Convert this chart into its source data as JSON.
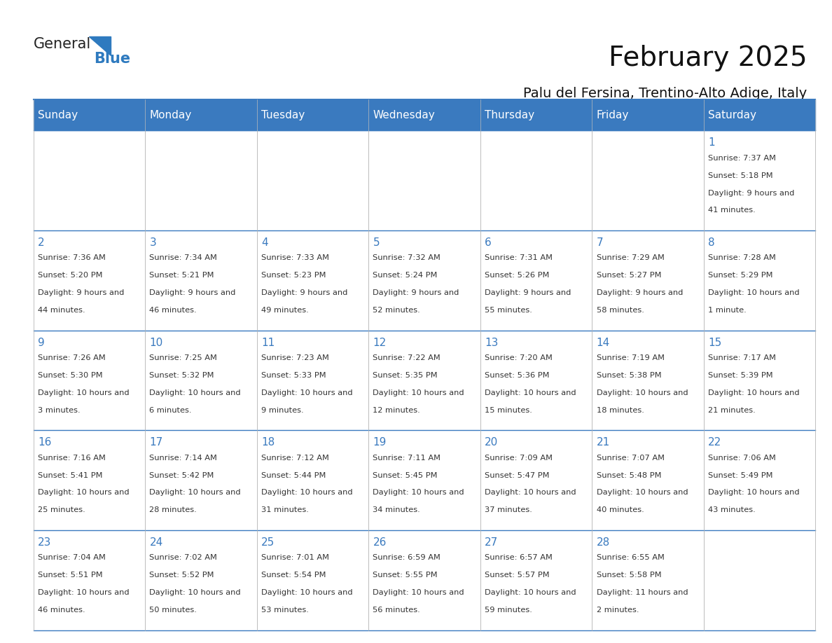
{
  "title": "February 2025",
  "subtitle": "Palu del Fersina, Trentino-Alto Adige, Italy",
  "days_of_week": [
    "Sunday",
    "Monday",
    "Tuesday",
    "Wednesday",
    "Thursday",
    "Friday",
    "Saturday"
  ],
  "header_bg": "#3a7abf",
  "header_text": "#ffffff",
  "cell_bg": "#ffffff",
  "cell_alt_bg": "#f0f4f8",
  "border_color": "#3a7abf",
  "day_number_color": "#3a7abf",
  "text_color": "#333333",
  "logo_general_color": "#222222",
  "logo_blue_color": "#2e7abf",
  "calendar_data": [
    [
      null,
      null,
      null,
      null,
      null,
      null,
      1
    ],
    [
      2,
      3,
      4,
      5,
      6,
      7,
      8
    ],
    [
      9,
      10,
      11,
      12,
      13,
      14,
      15
    ],
    [
      16,
      17,
      18,
      19,
      20,
      21,
      22
    ],
    [
      23,
      24,
      25,
      26,
      27,
      28,
      null
    ]
  ],
  "sunrise_sunset": {
    "1": {
      "rise": "7:37 AM",
      "set": "5:18 PM",
      "day": "9 hours and 41 minutes"
    },
    "2": {
      "rise": "7:36 AM",
      "set": "5:20 PM",
      "day": "9 hours and 44 minutes"
    },
    "3": {
      "rise": "7:34 AM",
      "set": "5:21 PM",
      "day": "9 hours and 46 minutes"
    },
    "4": {
      "rise": "7:33 AM",
      "set": "5:23 PM",
      "day": "9 hours and 49 minutes"
    },
    "5": {
      "rise": "7:32 AM",
      "set": "5:24 PM",
      "day": "9 hours and 52 minutes"
    },
    "6": {
      "rise": "7:31 AM",
      "set": "5:26 PM",
      "day": "9 hours and 55 minutes"
    },
    "7": {
      "rise": "7:29 AM",
      "set": "5:27 PM",
      "day": "9 hours and 58 minutes"
    },
    "8": {
      "rise": "7:28 AM",
      "set": "5:29 PM",
      "day": "10 hours and 1 minute"
    },
    "9": {
      "rise": "7:26 AM",
      "set": "5:30 PM",
      "day": "10 hours and 3 minutes"
    },
    "10": {
      "rise": "7:25 AM",
      "set": "5:32 PM",
      "day": "10 hours and 6 minutes"
    },
    "11": {
      "rise": "7:23 AM",
      "set": "5:33 PM",
      "day": "10 hours and 9 minutes"
    },
    "12": {
      "rise": "7:22 AM",
      "set": "5:35 PM",
      "day": "10 hours and 12 minutes"
    },
    "13": {
      "rise": "7:20 AM",
      "set": "5:36 PM",
      "day": "10 hours and 15 minutes"
    },
    "14": {
      "rise": "7:19 AM",
      "set": "5:38 PM",
      "day": "10 hours and 18 minutes"
    },
    "15": {
      "rise": "7:17 AM",
      "set": "5:39 PM",
      "day": "10 hours and 21 minutes"
    },
    "16": {
      "rise": "7:16 AM",
      "set": "5:41 PM",
      "day": "10 hours and 25 minutes"
    },
    "17": {
      "rise": "7:14 AM",
      "set": "5:42 PM",
      "day": "10 hours and 28 minutes"
    },
    "18": {
      "rise": "7:12 AM",
      "set": "5:44 PM",
      "day": "10 hours and 31 minutes"
    },
    "19": {
      "rise": "7:11 AM",
      "set": "5:45 PM",
      "day": "10 hours and 34 minutes"
    },
    "20": {
      "rise": "7:09 AM",
      "set": "5:47 PM",
      "day": "10 hours and 37 minutes"
    },
    "21": {
      "rise": "7:07 AM",
      "set": "5:48 PM",
      "day": "10 hours and 40 minutes"
    },
    "22": {
      "rise": "7:06 AM",
      "set": "5:49 PM",
      "day": "10 hours and 43 minutes"
    },
    "23": {
      "rise": "7:04 AM",
      "set": "5:51 PM",
      "day": "10 hours and 46 minutes"
    },
    "24": {
      "rise": "7:02 AM",
      "set": "5:52 PM",
      "day": "10 hours and 50 minutes"
    },
    "25": {
      "rise": "7:01 AM",
      "set": "5:54 PM",
      "day": "10 hours and 53 minutes"
    },
    "26": {
      "rise": "6:59 AM",
      "set": "5:55 PM",
      "day": "10 hours and 56 minutes"
    },
    "27": {
      "rise": "6:57 AM",
      "set": "5:57 PM",
      "day": "10 hours and 59 minutes"
    },
    "28": {
      "rise": "6:55 AM",
      "set": "5:58 PM",
      "day": "11 hours and 2 minutes"
    }
  }
}
